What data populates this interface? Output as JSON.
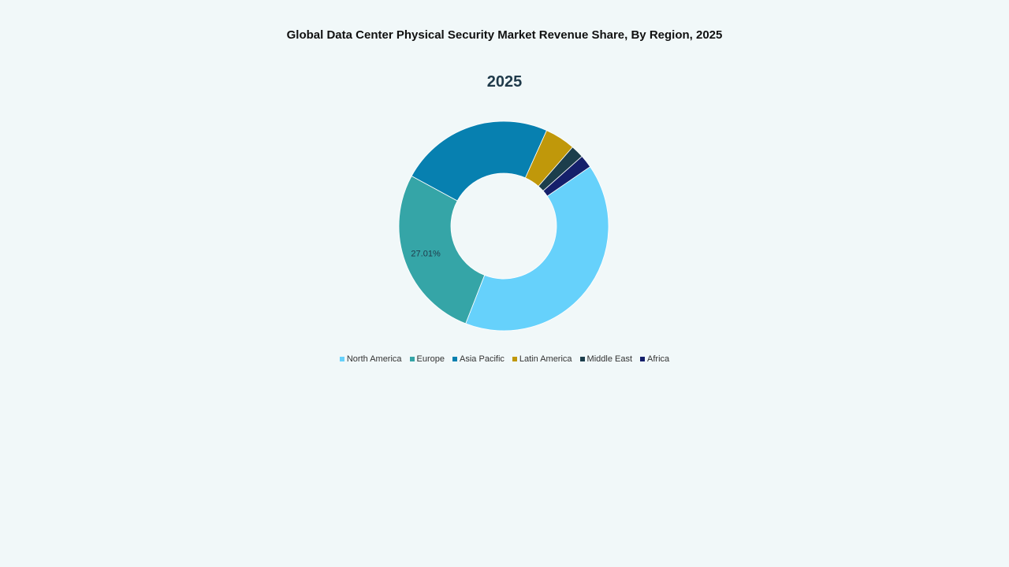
{
  "title": "Global Data Center Physical Security Market Revenue Share, By Region, 2025",
  "subtitle": "2025",
  "chart_data": {
    "type": "pie",
    "variant": "donut",
    "title": "Global Data Center Physical Security Market Revenue Share, By Region, 2025",
    "subtitle": "2025",
    "categories": [
      "North America",
      "Europe",
      "Asia Pacific",
      "Latin America",
      "Middle East",
      "Africa"
    ],
    "values": [
      40.5,
      27.01,
      23.8,
      4.7,
      2.0,
      2.0
    ],
    "colors": [
      "#66d1fb",
      "#35a5a7",
      "#0780b0",
      "#c0980a",
      "#1c3e4c",
      "#15206b"
    ],
    "data_labels": [
      {
        "category": "Europe",
        "text": "27.01%"
      }
    ],
    "start_angle_deg": 55.5,
    "legend_position": "bottom"
  },
  "legend": [
    {
      "label": "North America",
      "color": "#66d1fb"
    },
    {
      "label": "Europe",
      "color": "#35a5a7"
    },
    {
      "label": "Asia Pacific",
      "color": "#0780b0"
    },
    {
      "label": "Latin America",
      "color": "#c0980a"
    },
    {
      "label": "Middle East",
      "color": "#1c3e4c"
    },
    {
      "label": "Africa",
      "color": "#15206b"
    }
  ]
}
